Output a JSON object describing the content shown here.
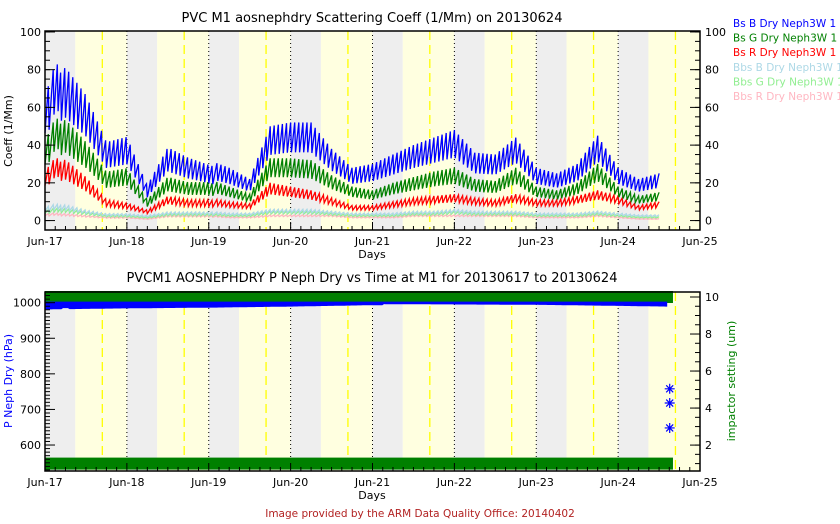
{
  "footer": "Image provided by the ARM Data Quality Office: 20140402",
  "colors": {
    "night": "#eeeeee",
    "day": "#ffffe0",
    "noon": "#ffff00",
    "footer": "#b22222"
  },
  "chart_data": [
    {
      "type": "line",
      "title": "PVC M1 aosnephdry Scattering Coeff (1/Mm) on 20130624",
      "xlabel": "Days",
      "ylabel": "Coeff (1/Mm)",
      "x_ticks": [
        "Jun-17",
        "Jun-18",
        "Jun-19",
        "Jun-20",
        "Jun-21",
        "Jun-22",
        "Jun-23",
        "Jun-24",
        "Jun-25"
      ],
      "xlim_days": [
        0,
        8
      ],
      "ylim": [
        -5,
        100.5
      ],
      "y_ticks": [
        0,
        20,
        40,
        60,
        80,
        100
      ],
      "right_y_ticks": [
        0,
        20,
        40,
        60,
        80,
        100
      ],
      "legend_position": "right",
      "x_days": [
        0,
        0.25,
        0.5,
        0.75,
        1,
        1.25,
        1.5,
        1.75,
        2,
        2.25,
        2.5,
        2.75,
        3,
        3.25,
        3.5,
        3.75,
        4,
        4.25,
        4.5,
        4.75,
        5,
        5.25,
        5.5,
        5.75,
        6,
        6.25,
        6.5,
        6.75,
        7,
        7.25,
        7.5
      ],
      "series": [
        {
          "name": "Bs B Dry Neph3W 1",
          "color": "#0000ff",
          "values": [
            75,
            88,
            72,
            45,
            48,
            20,
            42,
            36,
            32,
            28,
            22,
            50,
            52,
            52,
            38,
            28,
            30,
            35,
            40,
            44,
            48,
            36,
            35,
            44,
            28,
            25,
            30,
            45,
            28,
            22,
            25
          ]
        },
        {
          "name": "Bs G Dry Neph3W 1",
          "color": "#008000",
          "values": [
            48,
            58,
            45,
            28,
            30,
            12,
            25,
            22,
            22,
            18,
            14,
            33,
            33,
            32,
            24,
            18,
            16,
            20,
            23,
            26,
            28,
            22,
            21,
            28,
            18,
            16,
            20,
            30,
            18,
            13,
            15
          ]
        },
        {
          "name": "Bs R Dry Neph3W 1",
          "color": "#ff0000",
          "values": [
            30,
            35,
            25,
            12,
            10,
            6,
            14,
            12,
            12,
            10,
            9,
            20,
            18,
            16,
            12,
            8,
            8,
            10,
            12,
            13,
            14,
            12,
            11,
            14,
            11,
            11,
            13,
            16,
            13,
            8,
            10
          ]
        },
        {
          "name": "Bbs B Dry Neph3W 1",
          "color": "#add8e6",
          "values": [
            8,
            9,
            6,
            4,
            4,
            3,
            5,
            5,
            5,
            4,
            4,
            6,
            6,
            6,
            5,
            4,
            4,
            4,
            5,
            5,
            6,
            5,
            5,
            5,
            4,
            4,
            4,
            5,
            4,
            3,
            3
          ]
        },
        {
          "name": "Bbs G Dry Neph3W 1",
          "color": "#90ee90",
          "values": [
            6,
            7,
            5,
            3,
            3,
            2,
            4,
            4,
            4,
            3,
            3,
            5,
            5,
            5,
            4,
            3,
            3,
            3,
            4,
            4,
            5,
            4,
            4,
            4,
            3,
            3,
            3,
            4,
            3,
            2,
            2
          ]
        },
        {
          "name": "Bbs R Dry Neph3W 1",
          "color": "#ffb6c1",
          "values": [
            4,
            4,
            3,
            2,
            2,
            1,
            3,
            3,
            3,
            2,
            2,
            3,
            3,
            3,
            3,
            2,
            2,
            2,
            3,
            3,
            3,
            3,
            3,
            3,
            2,
            2,
            2,
            3,
            2,
            1,
            1
          ]
        }
      ]
    },
    {
      "type": "scatter",
      "title": "PVCM1 AOSNEPHDRY P Neph Dry vs Time at M1 for 20130617 to 20130624",
      "xlabel": "Days",
      "ylabel": "P Neph Dry (hPa)",
      "y2label": "impactor setting (um)",
      "x_ticks": [
        "Jun-17",
        "Jun-18",
        "Jun-19",
        "Jun-20",
        "Jun-21",
        "Jun-22",
        "Jun-23",
        "Jun-24",
        "Jun-25"
      ],
      "xlim_days": [
        0,
        8
      ],
      "ylim": [
        527,
        1030
      ],
      "y_ticks": [
        600,
        700,
        800,
        900,
        1000
      ],
      "y2lim": [
        0.6,
        10.27
      ],
      "y2_ticks": [
        2,
        4,
        6,
        8,
        10
      ],
      "pressure": {
        "name": "P Neph Dry",
        "color": "#0000ff",
        "x_days": [
          0,
          1,
          2,
          3,
          4,
          5,
          6,
          7,
          7.6
        ],
        "values": [
          985,
          988,
          990,
          993,
          997,
          996,
          995,
          992,
          990
        ]
      },
      "pressure_outliers": {
        "x_days": [
          7.63,
          7.63,
          7.63
        ],
        "values": [
          758,
          718,
          648
        ]
      },
      "impactor": {
        "name": "impactor setting",
        "color": "#008000",
        "levels": [
          10,
          1
        ],
        "x_range_days": [
          0,
          7.67
        ]
      }
    }
  ]
}
